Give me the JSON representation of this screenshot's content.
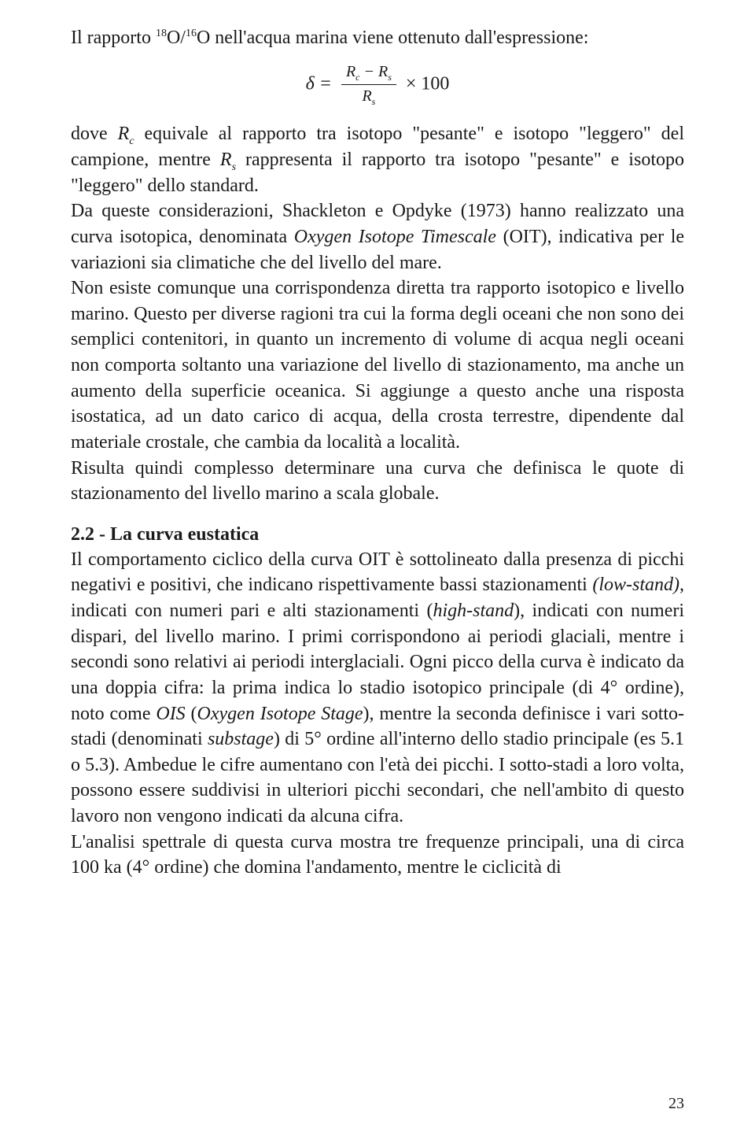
{
  "colors": {
    "text": "#1a1a1a",
    "background": "#ffffff"
  },
  "typography": {
    "body_fontsize_pt": 18,
    "heading_fontsize_pt": 18,
    "line_height": 1.36,
    "font_family": "Garamond / Georgia serif"
  },
  "formula": {
    "lhs": "δ =",
    "numerator_html": "R<span class=\"sub\">c</span> − R<span class=\"sub\">s</span>",
    "denominator_html": "R<span class=\"sub\">s</span>",
    "tail": "× 100"
  },
  "p1_html": "Il rapporto <span class=\"sup\">18</span>O/<span class=\"sup\">16</span>O nell'acqua marina viene ottenuto dall'espressione:",
  "p2_html": "dove <span class=\"italic\">R</span><span class=\"subscript\">c</span> equivale al rapporto tra isotopo \"pesante\" e isotopo \"leggero\" del campione, mentre <span class=\"italic\">R</span><span class=\"subscript\">s</span> rappresenta il rapporto tra isotopo \"pesante\" e isotopo \"leggero\" dello standard.",
  "p3_html": "Da queste considerazioni, Shackleton e Opdyke (1973) hanno realizzato una curva isotopica, denominata <span class=\"italic\">Oxygen Isotope Timescale</span> (OIT), indicativa per le variazioni sia climatiche che del livello del mare.",
  "p4_html": "Non esiste comunque una corrispondenza diretta tra rapporto isotopico e livello marino. Questo per diverse ragioni tra cui la forma degli oceani che non sono dei semplici contenitori, in quanto un incremento di volume di acqua negli oceani non comporta soltanto una variazione del livello di stazionamento, ma anche un aumento della superficie oceanica. Si aggiunge a questo anche una risposta isostatica, ad un dato carico di acqua, della crosta terrestre, dipendente dal materiale crostale, che cambia da località a località.",
  "p5_html": "Risulta quindi complesso determinare una curva che definisca le quote di stazionamento del livello marino a scala globale.",
  "heading": "2.2 - La curva eustatica",
  "p6_html": "Il comportamento ciclico della curva OIT è sottolineato dalla presenza di picchi negativi e positivi, che indicano rispettivamente bassi stazionamenti <span class=\"italic\">(low-stand)</span>, indicati con numeri pari e alti stazionamenti (<span class=\"italic\">high-stand</span>), indicati con numeri dispari, del livello marino. I primi corrispondono ai periodi glaciali, mentre i secondi sono relativi ai periodi interglaciali. Ogni picco della curva è indicato da una doppia cifra: la prima indica lo stadio isotopico principale (di 4° ordine), noto come <span class=\"italic\">OIS</span> (<span class=\"italic\">Oxygen Isotope Stage</span>), mentre la seconda definisce i vari sotto-stadi (denominati <span class=\"italic\">substage</span>) di 5° ordine all'interno dello stadio principale (es 5.1 o 5.3). Ambedue le cifre aumentano con l'età dei picchi. I sotto-stadi a loro volta, possono essere suddivisi in ulteriori picchi secondari, che nell'ambito di questo lavoro non vengono indicati da alcuna cifra.",
  "p7_html": "L'analisi spettrale di questa curva mostra tre frequenze principali, una di circa 100 ka (4° ordine) che domina l'andamento, mentre le ciclicità di",
  "page_number": "23"
}
